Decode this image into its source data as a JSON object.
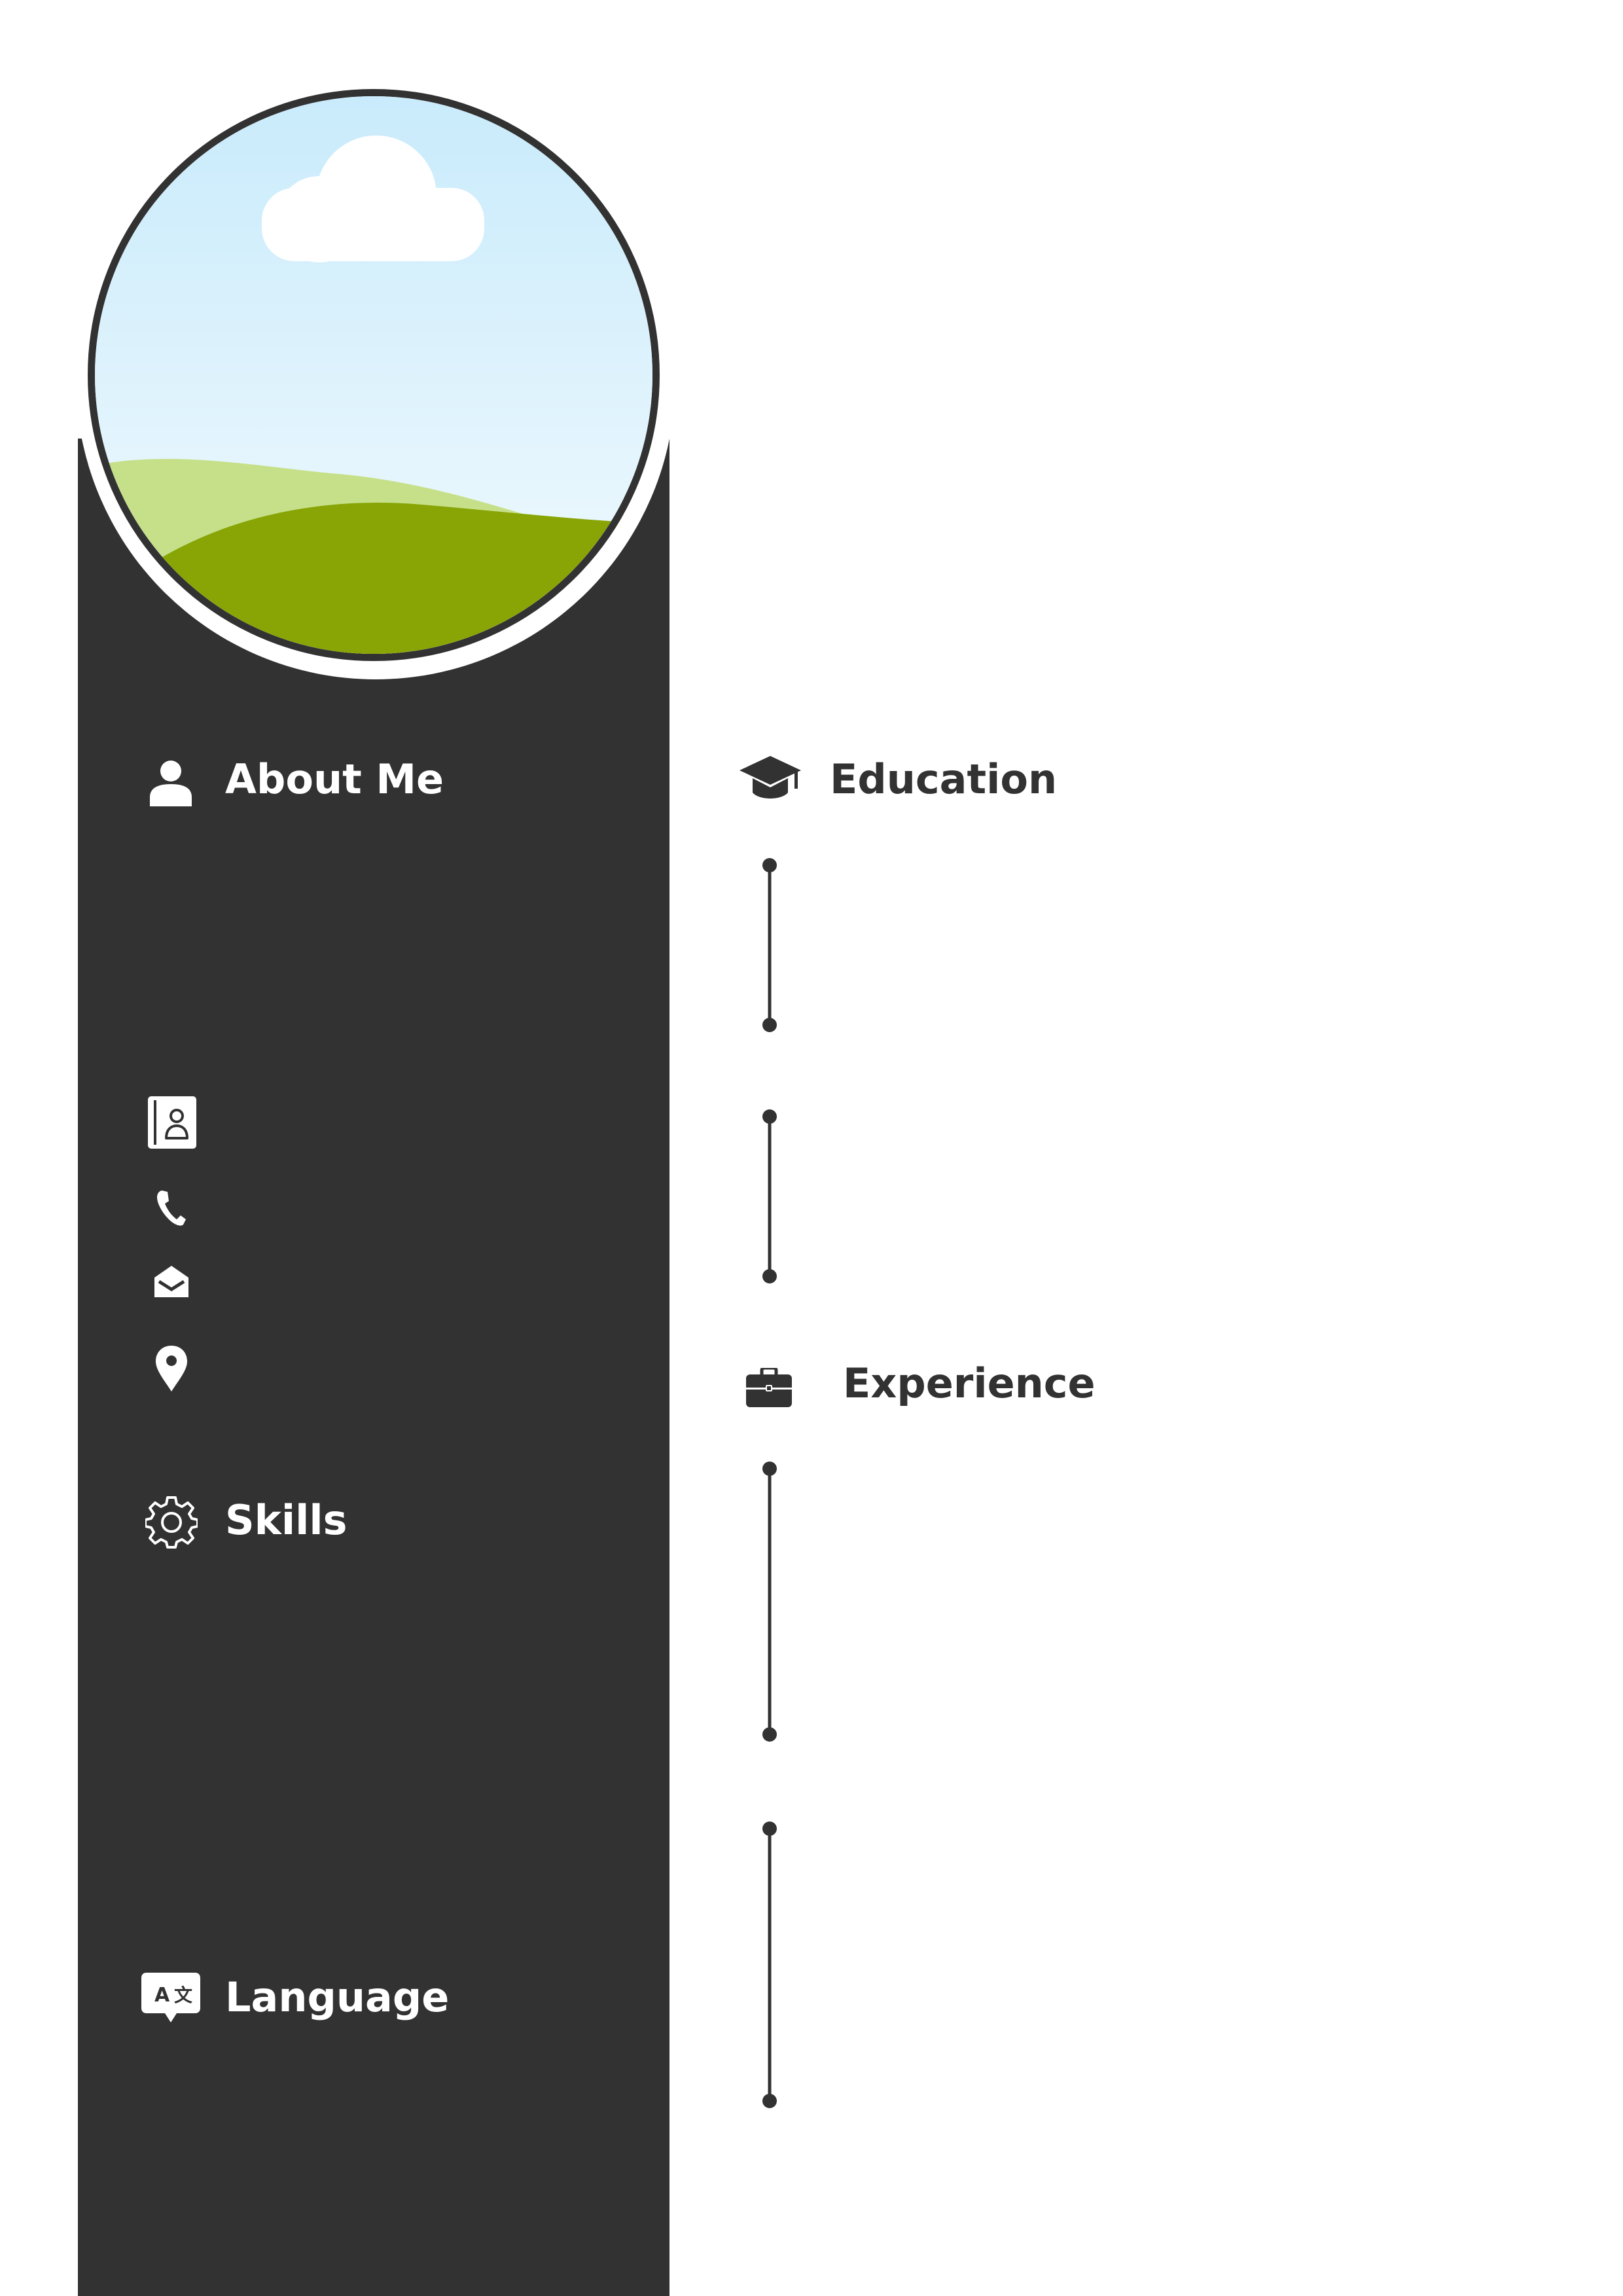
{
  "colors": {
    "sidebar": "#333233",
    "page": "#ffffff",
    "sky_top": "#c9ebfb",
    "sky_bottom": "#f2fafe",
    "hill_back": "#c6e08a",
    "hill_front": "#88a505",
    "cloud": "#ffffff"
  },
  "sidebar": {
    "about_title": "About Me",
    "skills_title": "Skills",
    "language_title": "Language",
    "contact_icons": [
      "contact-book-icon",
      "phone-icon",
      "envelope-icon",
      "location-pin-icon"
    ]
  },
  "main": {
    "education_title": "Education",
    "experience_title": "Experience"
  }
}
